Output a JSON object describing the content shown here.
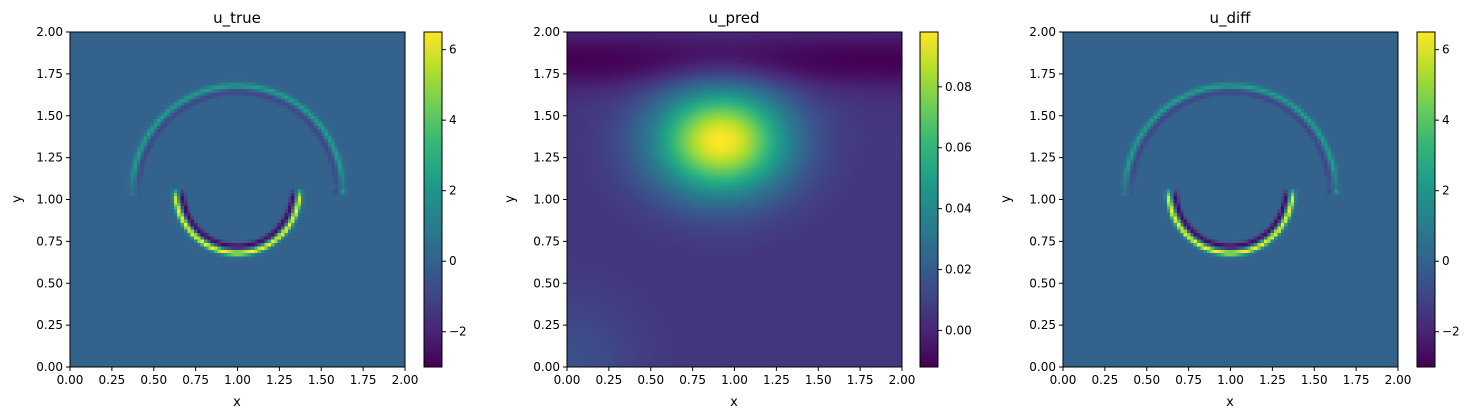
{
  "chart_data": [
    {
      "type": "heatmap",
      "title": "u_true",
      "xlabel": "x",
      "ylabel": "y",
      "xlim": [
        0,
        2
      ],
      "ylim": [
        0,
        2
      ],
      "xticks": [
        "0.00",
        "0.25",
        "0.50",
        "0.75",
        "1.00",
        "1.25",
        "1.50",
        "1.75",
        "2.00"
      ],
      "yticks": [
        "0.00",
        "0.25",
        "0.50",
        "0.75",
        "1.00",
        "1.25",
        "1.50",
        "1.75",
        "2.00"
      ],
      "colormap": "viridis",
      "colorbar": {
        "min": -3.0,
        "max": 6.5,
        "ticks": [
          "6",
          "4",
          "2",
          "0",
          "−2"
        ],
        "tick_values": [
          6,
          4,
          2,
          0,
          -2
        ]
      },
      "field": {
        "background": 0.0,
        "features": [
          {
            "kind": "ring",
            "center": [
              1.0,
              1.05
            ],
            "radius": 0.63,
            "half": "upper",
            "peak": 2.2,
            "inner_ring_value": -1.0
          },
          {
            "kind": "ring",
            "center": [
              1.0,
              1.05
            ],
            "radius": 0.37,
            "half": "lower",
            "peak": 6.5,
            "inner_ring_value": -2.8
          }
        ]
      }
    },
    {
      "type": "heatmap",
      "title": "u_pred",
      "xlabel": "x",
      "ylabel": "y",
      "xlim": [
        0,
        2
      ],
      "ylim": [
        0,
        2
      ],
      "xticks": [
        "0.00",
        "0.25",
        "0.50",
        "0.75",
        "1.00",
        "1.25",
        "1.50",
        "1.75",
        "2.00"
      ],
      "yticks": [
        "0.00",
        "0.25",
        "0.50",
        "0.75",
        "1.00",
        "1.25",
        "1.50",
        "1.75",
        "2.00"
      ],
      "colormap": "viridis",
      "colorbar": {
        "min": -0.012,
        "max": 0.098,
        "ticks": [
          "0.08",
          "0.06",
          "0.04",
          "0.02",
          "0.00"
        ],
        "tick_values": [
          0.08,
          0.06,
          0.04,
          0.02,
          0.0
        ]
      },
      "field": {
        "background": 0.005,
        "features": [
          {
            "kind": "blob",
            "center": [
              0.92,
              1.35
            ],
            "peak": 0.098,
            "spread": 0.28
          },
          {
            "kind": "trough",
            "center_y": 1.83,
            "depth": -0.012
          },
          {
            "kind": "corner",
            "corner": "bottom-left",
            "value": 0.015
          }
        ]
      }
    },
    {
      "type": "heatmap",
      "title": "u_diff",
      "xlabel": "x",
      "ylabel": "y",
      "xlim": [
        0,
        2
      ],
      "ylim": [
        0,
        2
      ],
      "xticks": [
        "0.00",
        "0.25",
        "0.50",
        "0.75",
        "1.00",
        "1.25",
        "1.50",
        "1.75",
        "2.00"
      ],
      "yticks": [
        "0.00",
        "0.25",
        "0.50",
        "0.75",
        "1.00",
        "1.25",
        "1.50",
        "1.75",
        "2.00"
      ],
      "colormap": "viridis",
      "colorbar": {
        "min": -3.0,
        "max": 6.5,
        "ticks": [
          "6",
          "4",
          "2",
          "0",
          "−2"
        ],
        "tick_values": [
          6,
          4,
          2,
          0,
          -2
        ]
      },
      "field": {
        "background": 0.0,
        "features": [
          {
            "kind": "ring",
            "center": [
              1.0,
              1.05
            ],
            "radius": 0.63,
            "half": "upper",
            "peak": 2.2,
            "inner_ring_value": -1.0
          },
          {
            "kind": "ring",
            "center": [
              1.0,
              1.05
            ],
            "radius": 0.37,
            "half": "lower",
            "peak": 6.5,
            "inner_ring_value": -2.8
          }
        ]
      }
    }
  ]
}
